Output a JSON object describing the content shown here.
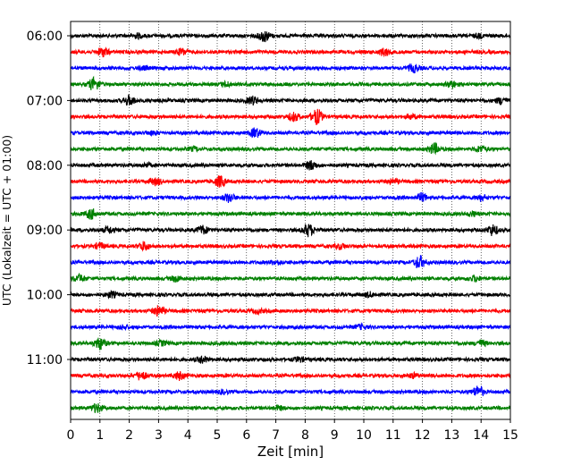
{
  "chart_data": {
    "type": "line",
    "subtype": "helicorder",
    "xlabel": "Zeit  [min]",
    "ylabel": "UTC (Lokalzeit = UTC + 01:00)",
    "xlim": [
      0,
      15
    ],
    "x_ticks": [
      "0",
      "1",
      "2",
      "3",
      "4",
      "5",
      "6",
      "7",
      "8",
      "9",
      "10",
      "11",
      "12",
      "13",
      "14",
      "15"
    ],
    "y_tick_labels": [
      "06:00",
      "07:00",
      "08:00",
      "09:00",
      "10:00",
      "11:00"
    ],
    "grid": "vertical dotted at each minute",
    "trace_start_times": [
      "06:00",
      "06:15",
      "06:30",
      "06:45",
      "07:00",
      "07:15",
      "07:30",
      "07:45",
      "08:00",
      "08:15",
      "08:30",
      "08:45",
      "09:00",
      "09:15",
      "09:30",
      "09:45",
      "10:00",
      "10:15",
      "10:30",
      "10:45",
      "11:00",
      "11:15",
      "11:30",
      "11:45"
    ],
    "trace_colors": [
      "#000000",
      "#ff0000",
      "#0000ff",
      "#008000"
    ],
    "traces": [
      {
        "bursts": [
          [
            6.6,
            1.6
          ],
          [
            2.3,
            0.6
          ],
          [
            13.9,
            0.5
          ]
        ]
      },
      {
        "bursts": [
          [
            1.1,
            1.3
          ],
          [
            3.8,
            0.9
          ],
          [
            10.7,
            1.0
          ]
        ]
      },
      {
        "bursts": [
          [
            11.7,
            1.1
          ],
          [
            2.5,
            0.4
          ]
        ]
      },
      {
        "bursts": [
          [
            0.8,
            1.8
          ],
          [
            5.3,
            0.6
          ],
          [
            13.0,
            0.9
          ]
        ]
      },
      {
        "bursts": [
          [
            2.0,
            1.4
          ],
          [
            6.2,
            1.1
          ],
          [
            14.7,
            0.9
          ]
        ]
      },
      {
        "bursts": [
          [
            8.4,
            2.2
          ],
          [
            7.6,
            1.2
          ],
          [
            11.6,
            0.6
          ]
        ]
      },
      {
        "bursts": [
          [
            6.3,
            1.3
          ],
          [
            2.8,
            0.5
          ]
        ]
      },
      {
        "bursts": [
          [
            12.4,
            1.5
          ],
          [
            14.0,
            0.8
          ],
          [
            4.2,
            0.5
          ]
        ]
      },
      {
        "bursts": [
          [
            8.2,
            1.3
          ],
          [
            2.6,
            0.5
          ]
        ]
      },
      {
        "bursts": [
          [
            5.1,
            1.6
          ],
          [
            2.9,
            1.0
          ],
          [
            11.0,
            0.6
          ]
        ]
      },
      {
        "bursts": [
          [
            5.4,
            1.2
          ],
          [
            12.0,
            1.1
          ],
          [
            14.0,
            0.8
          ]
        ]
      },
      {
        "bursts": [
          [
            0.7,
            1.4
          ],
          [
            13.7,
            0.6
          ]
        ]
      },
      {
        "bursts": [
          [
            8.1,
            1.8
          ],
          [
            4.5,
            1.2
          ],
          [
            14.4,
            1.5
          ],
          [
            1.3,
            0.9
          ]
        ]
      },
      {
        "bursts": [
          [
            2.5,
            1.2
          ],
          [
            1.0,
            0.8
          ],
          [
            9.2,
            0.7
          ]
        ]
      },
      {
        "bursts": [
          [
            11.9,
            1.8
          ],
          [
            7.0,
            0.6
          ]
        ]
      },
      {
        "bursts": [
          [
            0.3,
            1.0
          ],
          [
            3.6,
            0.8
          ],
          [
            13.8,
            0.7
          ]
        ]
      },
      {
        "bursts": [
          [
            1.4,
            0.8
          ],
          [
            10.2,
            0.6
          ]
        ]
      },
      {
        "bursts": [
          [
            3.0,
            1.4
          ],
          [
            6.4,
            0.6
          ]
        ]
      },
      {
        "bursts": [
          [
            9.9,
            0.6
          ],
          [
            1.8,
            0.5
          ]
        ]
      },
      {
        "bursts": [
          [
            1.0,
            1.7
          ],
          [
            14.0,
            0.8
          ],
          [
            3.1,
            0.6
          ]
        ]
      },
      {
        "bursts": [
          [
            4.5,
            0.9
          ],
          [
            7.8,
            0.6
          ]
        ]
      },
      {
        "bursts": [
          [
            2.4,
            1.2
          ],
          [
            3.7,
            1.1
          ],
          [
            11.7,
            0.6
          ]
        ]
      },
      {
        "bursts": [
          [
            13.9,
            1.6
          ],
          [
            5.2,
            0.5
          ]
        ]
      },
      {
        "bursts": [
          [
            0.9,
            1.2
          ],
          [
            7.1,
            0.5
          ]
        ]
      }
    ]
  }
}
